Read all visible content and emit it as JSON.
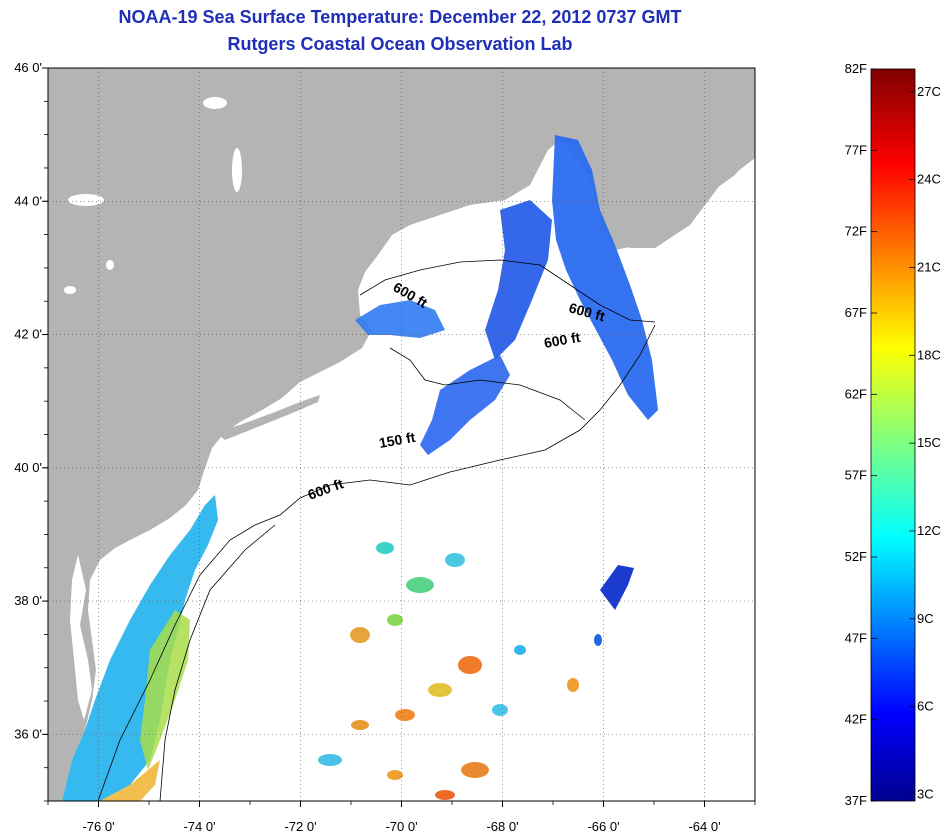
{
  "title": "NOAA-19 Sea Surface Temperature:  December 22, 2012 0737 GMT",
  "subtitle": "Rutgers Coastal Ocean Observation Lab",
  "map": {
    "lon_range": [
      -77,
      -63
    ],
    "lat_range": [
      35,
      46
    ],
    "lon_ticks": [
      "-76 0'",
      "-74 0'",
      "-72 0'",
      "-70 0'",
      "-68 0'",
      "-66 0'",
      "-64 0'"
    ],
    "lat_ticks": [
      "46 0'",
      "44 0'",
      "42 0'",
      "40 0'",
      "38 0'",
      "36 0'"
    ],
    "grid": "dotted",
    "land_color": "#b4b4b4",
    "no_data_color": "#ffffff",
    "isobath_labels": [
      "600 ft",
      "600 ft",
      "600 ft",
      "150 ft",
      "600 ft"
    ]
  },
  "colorbar": {
    "f_labels": [
      "82F",
      "77F",
      "72F",
      "67F",
      "62F",
      "57F",
      "52F",
      "47F",
      "42F",
      "37F"
    ],
    "c_labels": [
      "27C",
      "24C",
      "21C",
      "18C",
      "15C",
      "12C",
      "9C",
      "6C",
      "3C"
    ],
    "colormap": "jet",
    "range_f": [
      37,
      82
    ]
  }
}
